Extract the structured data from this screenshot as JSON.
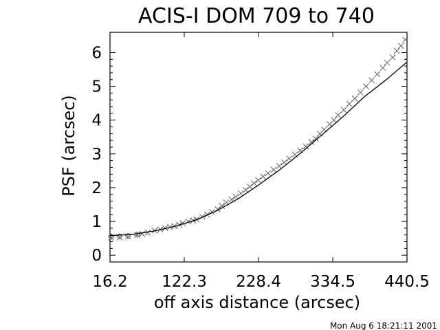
{
  "page": {
    "timestamp": "Mon Aug  6 18:21:11 2001"
  },
  "colors": {
    "background": "#ffffff",
    "axes": "#000000",
    "markers": "#606060",
    "fit_line": "#000000"
  },
  "chart_data": {
    "type": "scatter",
    "title": "ACIS-I DOM 709 to 740",
    "xlabel": "off axis distance (arcsec)",
    "ylabel": "PSF (arcsec)",
    "xlim": [
      16.2,
      440.5
    ],
    "ylim": [
      -0.2,
      6.6
    ],
    "x_ticks": [
      {
        "value": 16.2,
        "label": "16.2"
      },
      {
        "value": 122.3,
        "label": "122.3"
      },
      {
        "value": 228.4,
        "label": "228.4"
      },
      {
        "value": 334.5,
        "label": "334.5"
      },
      {
        "value": 440.5,
        "label": "440.5"
      }
    ],
    "y_ticks": [
      {
        "value": 0,
        "label": "0"
      },
      {
        "value": 1,
        "label": "1"
      },
      {
        "value": 2,
        "label": "2"
      },
      {
        "value": 3,
        "label": "3"
      },
      {
        "value": 4,
        "label": "4"
      },
      {
        "value": 5,
        "label": "5"
      },
      {
        "value": 6,
        "label": "6"
      }
    ],
    "grid": false,
    "series": [
      {
        "marker": "x",
        "x": [
          18,
          30,
          42,
          55,
          62,
          70,
          80,
          88,
          95,
          102,
          108,
          115,
          120,
          128,
          135,
          140,
          148,
          155,
          162,
          170,
          176,
          182,
          190,
          196,
          203,
          210,
          216,
          222,
          228,
          235,
          242,
          250,
          258,
          265,
          272,
          280,
          288,
          296,
          304,
          310,
          316,
          322,
          330,
          336,
          342,
          350,
          358,
          366,
          374,
          382,
          390,
          398,
          406,
          412,
          420,
          426,
          432,
          438
        ],
        "y": [
          0.52,
          0.53,
          0.55,
          0.6,
          0.63,
          0.67,
          0.73,
          0.76,
          0.8,
          0.84,
          0.86,
          0.9,
          0.95,
          1.0,
          1.03,
          1.06,
          1.14,
          1.2,
          1.28,
          1.36,
          1.46,
          1.56,
          1.65,
          1.73,
          1.83,
          1.93,
          2.03,
          2.13,
          2.22,
          2.33,
          2.43,
          2.53,
          2.64,
          2.75,
          2.86,
          2.98,
          3.1,
          3.22,
          3.35,
          3.45,
          3.6,
          3.72,
          3.88,
          4.0,
          4.15,
          4.3,
          4.48,
          4.64,
          4.82,
          5.0,
          5.18,
          5.36,
          5.55,
          5.7,
          5.86,
          6.05,
          6.2,
          6.38
        ]
      },
      {
        "marker": "diamond",
        "x": [
          18,
          30,
          42,
          55
        ],
        "y": [
          0.55,
          0.56,
          0.57,
          0.61
        ]
      },
      {
        "marker": "line",
        "x": [
          16.2,
          50,
          80,
          110,
          140,
          170,
          200,
          230,
          260,
          290,
          320,
          350,
          380,
          410,
          440.5
        ],
        "y": [
          0.58,
          0.62,
          0.72,
          0.86,
          1.05,
          1.33,
          1.68,
          2.1,
          2.55,
          3.05,
          3.58,
          4.12,
          4.7,
          5.18,
          5.72
        ]
      }
    ]
  }
}
